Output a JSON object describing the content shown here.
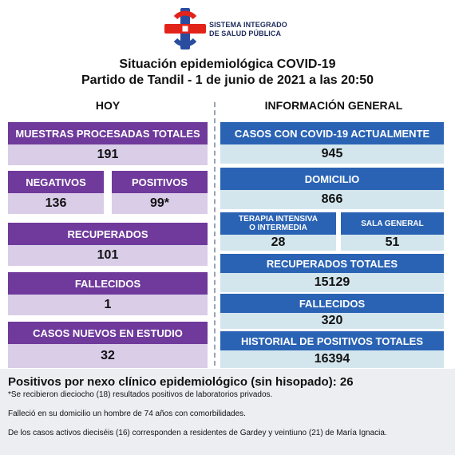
{
  "logo": {
    "line1": "SISTEMA INTEGRADO",
    "line2": "DE SALUD PÚBLICA"
  },
  "title": {
    "line1": "Situación epidemiológica COVID-19",
    "line2": "Partido de Tandil - 1 de junio de 2021 a las 20:50"
  },
  "hoy": {
    "heading": "HOY",
    "muestras": {
      "label": "MUESTRAS PROCESADAS TOTALES",
      "value": "191"
    },
    "negativos": {
      "label": "NEGATIVOS",
      "value": "136"
    },
    "positivos": {
      "label": "POSITIVOS",
      "value": "99*"
    },
    "recuperados": {
      "label": "RECUPERADOS",
      "value": "101"
    },
    "fallecidos": {
      "label": "FALLECIDOS",
      "value": "1"
    },
    "nuevos": {
      "label": "CASOS NUEVOS EN ESTUDIO",
      "value": "32"
    }
  },
  "general": {
    "heading": "INFORMACIÓN GENERAL",
    "casos": {
      "label": "CASOS CON COVID-19 ACTUALMENTE",
      "value": "945"
    },
    "domicilio": {
      "label": "DOMICILIO",
      "value": "866"
    },
    "terapia": {
      "label_line1": "TERAPIA INTENSIVA",
      "label_line2": "O INTERMEDIA",
      "value": "28"
    },
    "sala": {
      "label": "SALA GENERAL",
      "value": "51"
    },
    "recuperados": {
      "label": "RECUPERADOS TOTALES",
      "value": "15129"
    },
    "fallecidos": {
      "label": "FALLECIDOS",
      "value": "320"
    },
    "historial": {
      "label": "HISTORIAL DE POSITIVOS TOTALES",
      "value": "16394"
    }
  },
  "footer": {
    "main": "Positivos por nexo clínico epidemiológico (sin hisopado): 26",
    "note": "*Se recibieron dieciocho (18) resultados positivos de laboratorios privados.",
    "p1": "Falleció en su domicilio un hombre de 74 años con comorbilidades.",
    "p2": "De los casos activos dieciséis (16) corresponden a residentes de Gardey y veintiuno (21) de María Ignacia."
  },
  "colors": {
    "purple": "#6f3a9b",
    "lavender": "#d9cde8",
    "blue": "#2a63b4",
    "cyan": "#d3e6ee",
    "logo_red": "#e2231a",
    "logo_blue": "#2a4da0"
  },
  "icons": [
    "health-system-logo-icon"
  ]
}
